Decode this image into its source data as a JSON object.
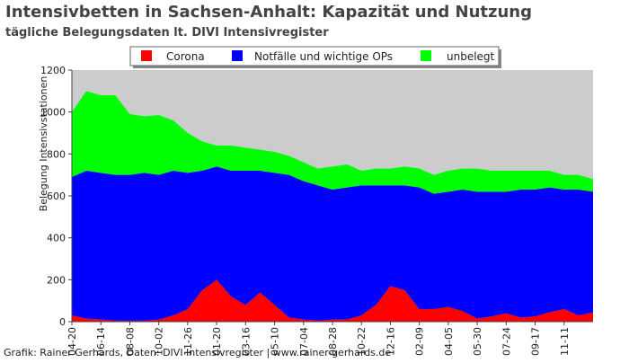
{
  "chart_data": {
    "type": "stacked-area",
    "title": "Intensivbetten in Sachsen-Anhalt: Kapazität und Nutzung",
    "subtitle": "tägliche Belegungsdaten lt. DIVI Intensivregister",
    "y_label": "Belegung Intensivstationen",
    "footer": "Grafik: Rainer Gerhards, Daten: DIVI Intensivregister | www.rainer-gerhards.de",
    "categories": [
      "04-20",
      null,
      "06-14",
      null,
      "08-08",
      null,
      "10-02",
      null,
      "11-26",
      null,
      "01-20",
      null,
      "03-16",
      null,
      "05-10",
      null,
      "07-04",
      null,
      "08-28",
      null,
      "10-22",
      null,
      "12-16",
      null,
      "02-09",
      null,
      "04-05",
      null,
      "05-30",
      null,
      "07-24",
      null,
      "09-17",
      null,
      "11-11",
      null,
      null
    ],
    "series": [
      {
        "name": "Corona",
        "color": "#ff0000",
        "values": [
          30,
          15,
          10,
          5,
          5,
          5,
          10,
          30,
          60,
          150,
          200,
          120,
          80,
          140,
          80,
          20,
          10,
          5,
          10,
          10,
          30,
          80,
          170,
          150,
          60,
          60,
          70,
          50,
          15,
          25,
          40,
          20,
          25,
          45,
          60,
          30,
          45
        ]
      },
      {
        "name": "Notfälle und wichtige OPs",
        "color": "#0000ff",
        "values": [
          660,
          705,
          700,
          695,
          695,
          705,
          690,
          690,
          650,
          570,
          540,
          600,
          640,
          580,
          630,
          680,
          660,
          645,
          620,
          630,
          620,
          570,
          480,
          500,
          580,
          550,
          550,
          580,
          605,
          595,
          580,
          610,
          605,
          595,
          570,
          600,
          575
        ]
      },
      {
        "name": "unbelegt",
        "color": "#00ff00",
        "values": [
          310,
          380,
          370,
          380,
          290,
          270,
          285,
          240,
          190,
          140,
          100,
          120,
          110,
          100,
          100,
          90,
          90,
          80,
          110,
          110,
          70,
          80,
          80,
          90,
          90,
          90,
          100,
          100,
          110,
          100,
          100,
          90,
          90,
          80,
          70,
          70,
          60
        ]
      }
    ],
    "ylim": [
      0,
      1200
    ],
    "yticks": [
      0,
      200,
      400,
      600,
      800,
      1000,
      1200
    ],
    "plot_background": "#cccccc"
  }
}
